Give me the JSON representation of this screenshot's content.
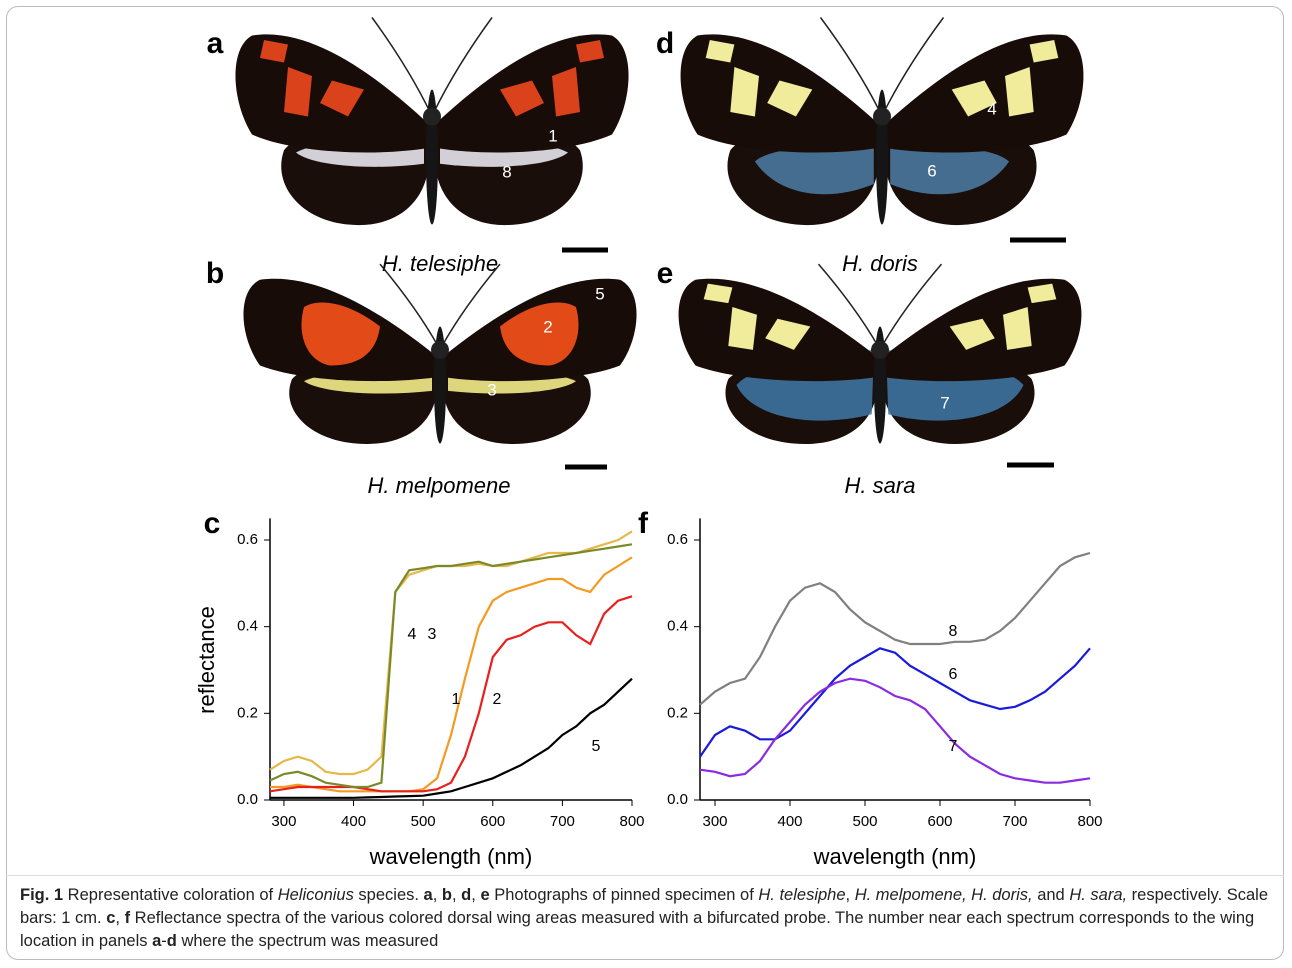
{
  "panels": [
    {
      "label": "a",
      "species": "H. telesiphe",
      "spot_labels": [
        "1",
        "8"
      ]
    },
    {
      "label": "b",
      "species": "H. melpomene",
      "spot_labels": [
        "5",
        "2",
        "3"
      ]
    },
    {
      "label": "d",
      "species": "H. doris",
      "spot_labels": [
        "4",
        "6"
      ]
    },
    {
      "label": "e",
      "species": "H. sara",
      "spot_labels": [
        "7"
      ]
    }
  ],
  "chart_data": [
    {
      "type": "line",
      "panel_label": "c",
      "x_label": "wavelength (nm)",
      "y_label": "reflectance",
      "xlim": [
        280,
        800
      ],
      "ylim": [
        0,
        0.65
      ],
      "xticks": [
        300,
        400,
        500,
        600,
        700,
        800
      ],
      "yticks": [
        {
          "value": 0,
          "label": "0.0"
        },
        0.2,
        0.4,
        0.6
      ],
      "x": [
        280,
        300,
        320,
        340,
        360,
        380,
        400,
        420,
        440,
        460,
        480,
        500,
        520,
        540,
        560,
        580,
        600,
        620,
        640,
        660,
        680,
        700,
        720,
        740,
        760,
        780,
        800
      ],
      "series": [
        {
          "name": "1",
          "color": "#f39a24",
          "values": [
            0.03,
            0.03,
            0.035,
            0.03,
            0.025,
            0.02,
            0.02,
            0.02,
            0.02,
            0.02,
            0.02,
            0.025,
            0.05,
            0.15,
            0.28,
            0.4,
            0.46,
            0.48,
            0.49,
            0.5,
            0.51,
            0.51,
            0.49,
            0.48,
            0.52,
            0.54,
            0.56
          ]
        },
        {
          "name": "2",
          "color": "#e8201c",
          "values": [
            0.02,
            0.025,
            0.03,
            0.03,
            0.03,
            0.03,
            0.03,
            0.025,
            0.02,
            0.02,
            0.02,
            0.02,
            0.025,
            0.04,
            0.1,
            0.2,
            0.33,
            0.37,
            0.38,
            0.4,
            0.41,
            0.41,
            0.38,
            0.36,
            0.43,
            0.46,
            0.47
          ]
        },
        {
          "name": "3",
          "color": "#e6b84a",
          "values": [
            0.07,
            0.09,
            0.1,
            0.09,
            0.065,
            0.06,
            0.06,
            0.07,
            0.1,
            0.48,
            0.52,
            0.53,
            0.54,
            0.54,
            0.54,
            0.545,
            0.54,
            0.54,
            0.55,
            0.56,
            0.57,
            0.57,
            0.57,
            0.58,
            0.59,
            0.6,
            0.62
          ]
        },
        {
          "name": "4",
          "color": "#7a8a2a",
          "values": [
            0.045,
            0.06,
            0.065,
            0.055,
            0.04,
            0.035,
            0.03,
            0.03,
            0.04,
            0.48,
            0.53,
            0.535,
            0.54,
            0.54,
            0.545,
            0.55,
            0.54,
            0.545,
            0.55,
            0.555,
            0.56,
            0.565,
            0.57,
            0.575,
            0.58,
            0.585,
            0.59
          ]
        },
        {
          "name": "5",
          "color": "#000000",
          "values": [
            0.005,
            0.005,
            0.005,
            0.005,
            0.005,
            0.005,
            0.005,
            0.006,
            0.007,
            0.008,
            0.009,
            0.01,
            0.015,
            0.02,
            0.03,
            0.04,
            0.05,
            0.065,
            0.08,
            0.1,
            0.12,
            0.15,
            0.17,
            0.2,
            0.22,
            0.25,
            0.28
          ]
        }
      ]
    },
    {
      "type": "line",
      "panel_label": "f",
      "x_label": "wavelength (nm)",
      "xlim": [
        280,
        800
      ],
      "ylim": [
        0,
        0.65
      ],
      "xticks": [
        300,
        400,
        500,
        600,
        700,
        800
      ],
      "yticks": [
        {
          "value": 0,
          "label": "0.0"
        },
        0.2,
        0.4,
        0.6
      ],
      "x": [
        280,
        300,
        320,
        340,
        360,
        380,
        400,
        420,
        440,
        460,
        480,
        500,
        520,
        540,
        560,
        580,
        600,
        620,
        640,
        660,
        680,
        700,
        720,
        740,
        760,
        780,
        800
      ],
      "series": [
        {
          "name": "8",
          "color": "#808080",
          "values": [
            0.22,
            0.25,
            0.27,
            0.28,
            0.33,
            0.4,
            0.46,
            0.49,
            0.5,
            0.48,
            0.44,
            0.41,
            0.39,
            0.37,
            0.36,
            0.36,
            0.36,
            0.365,
            0.365,
            0.37,
            0.39,
            0.42,
            0.46,
            0.5,
            0.54,
            0.56,
            0.57
          ]
        },
        {
          "name": "6",
          "color": "#1a1adb",
          "values": [
            0.1,
            0.15,
            0.17,
            0.16,
            0.14,
            0.14,
            0.16,
            0.2,
            0.24,
            0.28,
            0.31,
            0.33,
            0.35,
            0.34,
            0.31,
            0.29,
            0.27,
            0.25,
            0.23,
            0.22,
            0.21,
            0.215,
            0.23,
            0.25,
            0.28,
            0.31,
            0.35
          ]
        },
        {
          "name": "7",
          "color": "#8a2be2",
          "values": [
            0.07,
            0.065,
            0.055,
            0.06,
            0.09,
            0.14,
            0.18,
            0.22,
            0.25,
            0.27,
            0.28,
            0.275,
            0.26,
            0.24,
            0.23,
            0.21,
            0.17,
            0.13,
            0.1,
            0.08,
            0.06,
            0.05,
            0.045,
            0.04,
            0.04,
            0.045,
            0.05
          ]
        }
      ]
    }
  ],
  "caption": [
    "Fig. 1",
    " Representative coloration of ",
    "Heliconius",
    " species. ",
    "a",
    ", ",
    "b",
    ", ",
    "d",
    ", ",
    "e",
    " Photographs of pinned specimen of ",
    "H. telesiphe",
    ", ",
    "H. melpomene, H. doris,",
    " and ",
    "H. sara,",
    " respectively. Scale bars: 1 cm. ",
    "c",
    ", ",
    "f",
    " Reflectance spectra of the various colored dorsal wing areas measured with a bifurcated probe. The number near each spectrum corresponds to the wing location in panels ",
    "a",
    "-",
    "d",
    " where the spectrum was measured"
  ]
}
